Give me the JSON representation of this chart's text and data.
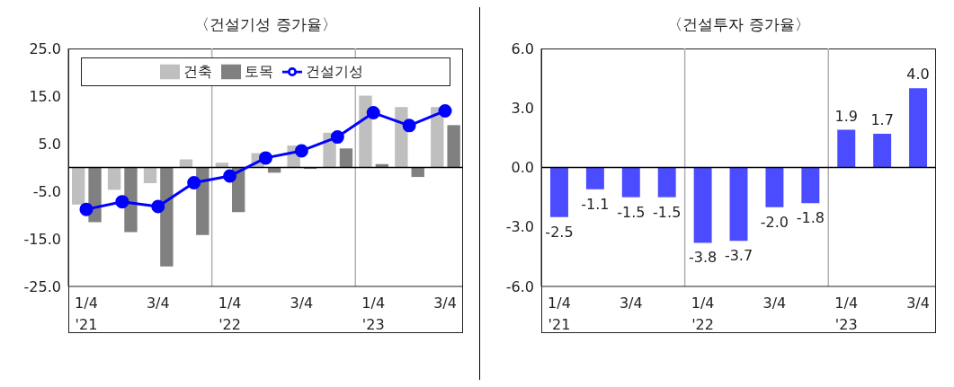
{
  "chart_data": [
    {
      "type": "bar",
      "title": "〈건설기성 증가율〉",
      "categories": [
        "1/4\n'21",
        null,
        "3/4",
        null,
        "1/4\n'22",
        null,
        "3/4",
        null,
        "1/4\n'23",
        null,
        "3/4"
      ],
      "series": [
        {
          "name": "건축",
          "type": "bar",
          "color": "#bfbfbf",
          "values": [
            -7.8,
            -4.7,
            -3.3,
            1.7,
            1.0,
            3.0,
            4.6,
            7.3,
            15.1,
            12.7,
            12.7
          ]
        },
        {
          "name": "토목",
          "type": "bar",
          "color": "#808080",
          "values": [
            -11.5,
            -13.6,
            -20.8,
            -14.2,
            -9.4,
            -1.1,
            -0.3,
            4.0,
            0.7,
            -2.0,
            8.9
          ]
        },
        {
          "name": "건설기성",
          "type": "line",
          "color": "#0000ff",
          "values": [
            -8.8,
            -7.2,
            -8.2,
            -3.2,
            -1.8,
            2.0,
            3.5,
            6.4,
            11.5,
            8.8,
            11.9
          ]
        }
      ],
      "ylim": [
        -25,
        25
      ],
      "yticks": [
        {
          "value": -25,
          "label": "-25.0"
        },
        {
          "value": -15,
          "label": "-15.0"
        },
        {
          "value": -5,
          "label": "-5.0"
        },
        {
          "value": 5,
          "label": "5.0"
        },
        {
          "value": 15,
          "label": "15.0"
        },
        {
          "value": 25,
          "label": "25.0"
        }
      ],
      "legend": "top",
      "marker": "circle",
      "line_style": "solid"
    },
    {
      "type": "bar",
      "title": "〈건설투자 증가율〉",
      "categories": [
        "1/4\n'21",
        null,
        "3/4",
        null,
        "1/4\n'22",
        null,
        "3/4",
        null,
        "1/4\n'23",
        null,
        "3/4"
      ],
      "values": [
        -2.5,
        -1.1,
        -1.5,
        -1.5,
        -3.8,
        -3.7,
        -2.0,
        -1.8,
        1.9,
        1.7,
        4.0
      ],
      "color": "#4b4bff",
      "ylim": [
        -6,
        6
      ],
      "yticks": [
        {
          "value": -6,
          "label": "-6.0"
        },
        {
          "value": -3,
          "label": "-3.0"
        },
        {
          "value": 0,
          "label": "0.0"
        },
        {
          "value": 3,
          "label": "3.0"
        },
        {
          "value": 6,
          "label": "6.0"
        }
      ],
      "value_labels": [
        "-2.5",
        "-1.1",
        "-1.5",
        "-1.5",
        "-3.8",
        "-3.7",
        "-2.0",
        "-1.8",
        "1.9",
        "1.7",
        "4.0"
      ],
      "legend": false
    }
  ]
}
